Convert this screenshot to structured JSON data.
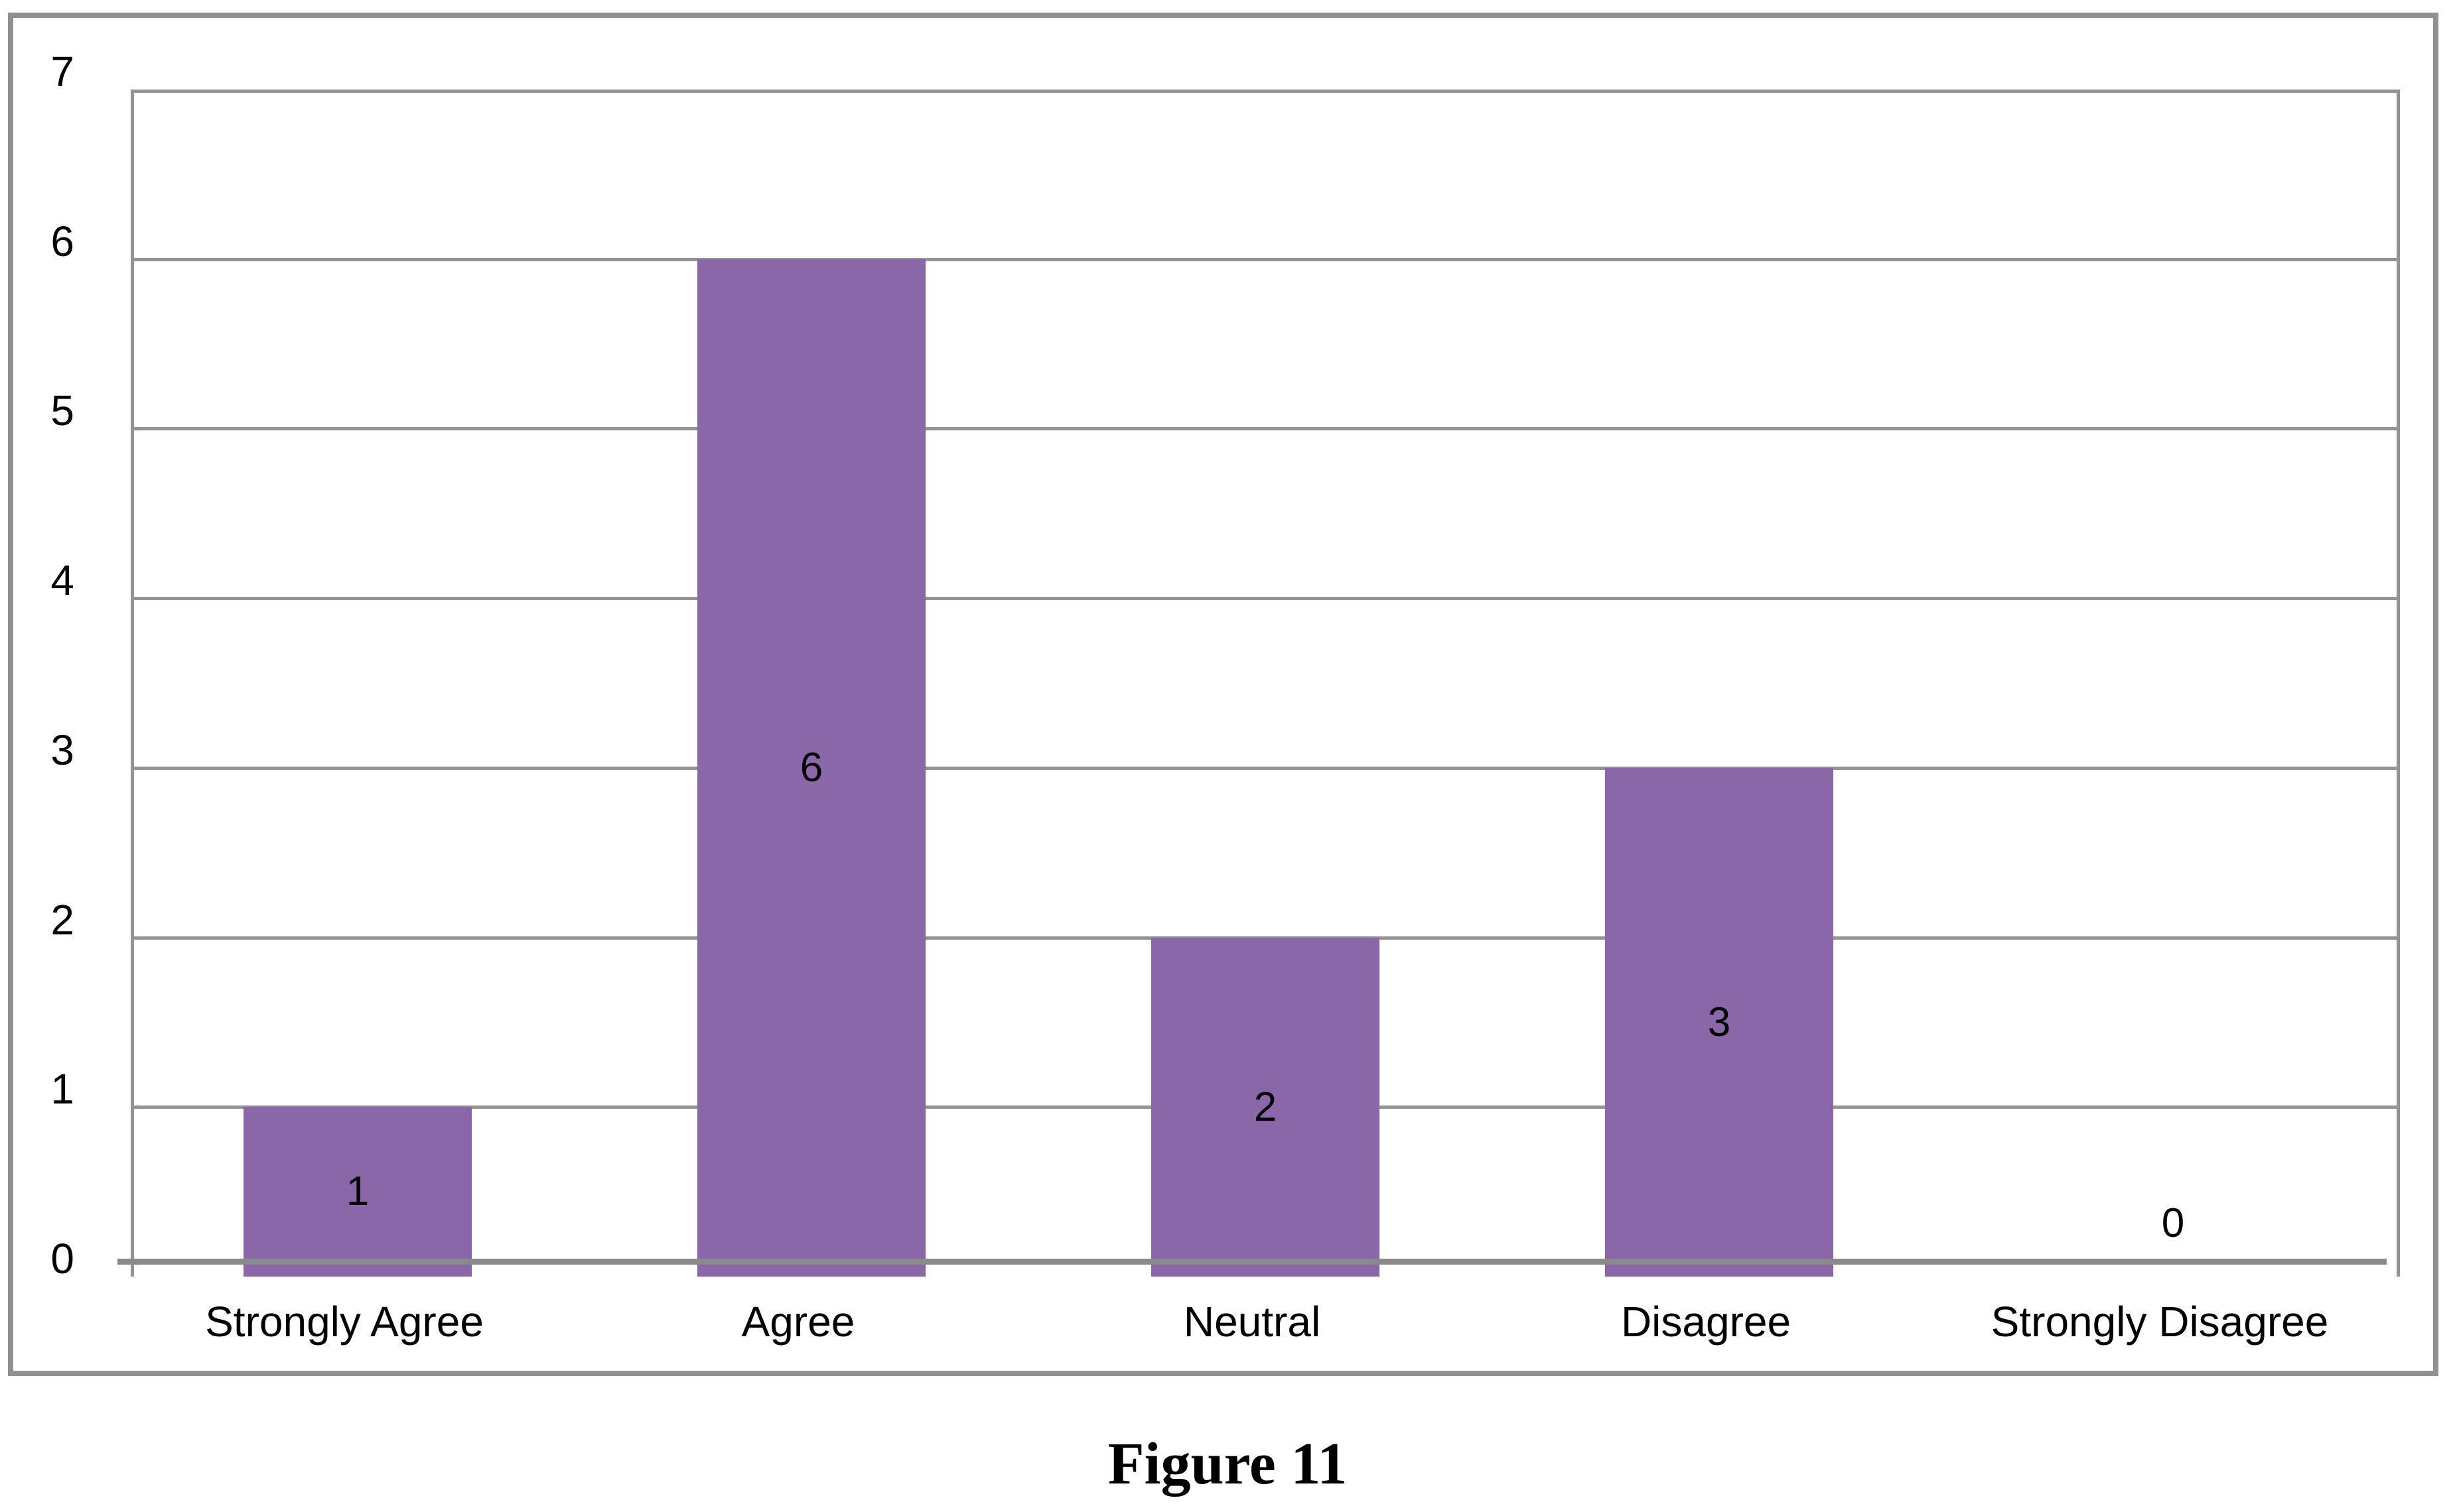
{
  "figure": {
    "caption": "Figure 11"
  },
  "chart_data": {
    "type": "bar",
    "title": "",
    "xlabel": "",
    "ylabel": "",
    "categories": [
      "Strongly Agree",
      "Agree",
      "Neutral",
      "Disagree",
      "Strongly Disagree"
    ],
    "values": [
      1,
      6,
      2,
      3,
      0
    ],
    "data_labels": [
      "1",
      "6",
      "2",
      "3",
      "0"
    ],
    "yticks": [
      0,
      1,
      2,
      3,
      4,
      5,
      6,
      7
    ],
    "ylim": [
      0,
      7
    ],
    "grid": true,
    "legend": false,
    "bar_color": "#8A67A9",
    "gridline_color": "#949494",
    "axis_line_color": "#8A8A8A",
    "frame_border_color": "#909090",
    "text_color": "#000000",
    "background_color": "#FFFFFF"
  }
}
